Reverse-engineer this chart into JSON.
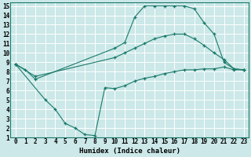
{
  "xlabel": "Humidex (Indice chaleur)",
  "bg_color": "#cce8e8",
  "line_color": "#1a7a6a",
  "grid_color": "#ffffff",
  "xlim": [
    -0.5,
    23.5
  ],
  "ylim": [
    1,
    15.4
  ],
  "xticks": [
    0,
    1,
    2,
    3,
    4,
    5,
    6,
    7,
    8,
    9,
    10,
    11,
    12,
    13,
    14,
    15,
    16,
    17,
    18,
    19,
    20,
    21,
    22,
    23
  ],
  "yticks": [
    1,
    2,
    3,
    4,
    5,
    6,
    7,
    8,
    9,
    10,
    11,
    12,
    13,
    14,
    15
  ],
  "line1_x": [
    0,
    1,
    2,
    10,
    11,
    12,
    13,
    14,
    15,
    16,
    17,
    18,
    19,
    20,
    21,
    22,
    23
  ],
  "line1_y": [
    8.8,
    8.2,
    7.2,
    10.5,
    11.1,
    13.8,
    15.0,
    15.0,
    15.0,
    15.0,
    15.0,
    14.7,
    13.2,
    12.0,
    9.0,
    8.3,
    8.2
  ],
  "line2_x": [
    0,
    2,
    10,
    11,
    12,
    13,
    14,
    15,
    16,
    17,
    18,
    19,
    20,
    21,
    22,
    23
  ],
  "line2_y": [
    8.8,
    7.5,
    9.5,
    10.0,
    10.5,
    11.0,
    11.5,
    11.8,
    12.0,
    12.0,
    11.5,
    10.8,
    10.0,
    9.3,
    8.3,
    8.2
  ],
  "line3_x": [
    0,
    3,
    4,
    5,
    6,
    7,
    8,
    9,
    10,
    11,
    12,
    13,
    14,
    15,
    16,
    17,
    18,
    19,
    20,
    21,
    22,
    23
  ],
  "line3_y": [
    8.8,
    5.0,
    4.0,
    2.5,
    2.0,
    1.3,
    1.2,
    6.3,
    6.2,
    6.5,
    7.0,
    7.3,
    7.5,
    7.8,
    8.0,
    8.2,
    8.2,
    8.3,
    8.3,
    8.5,
    8.2,
    8.2
  ]
}
